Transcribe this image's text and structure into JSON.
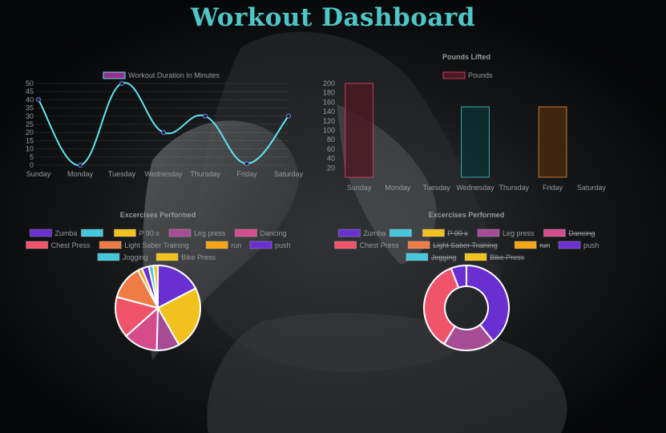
{
  "page": {
    "title": "Workout Dashboard"
  },
  "colors": {
    "title": "#4fc6c6",
    "line": "#5ee6ee",
    "text": "#9a9a9a"
  },
  "chart_data": [
    {
      "type": "line",
      "legend": [
        "Workout Duration In Minutes"
      ],
      "legend_color": "#9b2c8c",
      "categories": [
        "Sunday",
        "Monday",
        "Tuesday",
        "Wednesday",
        "Thursday",
        "Friday",
        "Saturday"
      ],
      "series": [
        {
          "name": "Workout Duration In Minutes",
          "values": [
            40,
            0,
            50,
            20,
            30,
            1,
            30
          ]
        }
      ],
      "yticks": [
        50,
        45,
        40,
        35,
        30,
        25,
        20,
        15,
        10,
        5,
        0
      ],
      "ylim": [
        0,
        50
      ]
    },
    {
      "type": "bar",
      "title": "Pounds Lifted",
      "legend": [
        "Pounds"
      ],
      "categories": [
        "Sunday",
        "Monday",
        "Tuesday",
        "Wednesday",
        "Thursday",
        "Friday",
        "Saturday"
      ],
      "series": [
        {
          "name": "Pounds",
          "values": [
            200,
            0,
            0,
            150,
            0,
            150,
            0
          ]
        }
      ],
      "bar_fills": [
        "#4a1822",
        "#000000",
        "#000000",
        "#0e3032",
        "#000000",
        "#4a2a10",
        "#000000"
      ],
      "bar_strokes": [
        "#c2405a",
        "#000000",
        "#000000",
        "#39a8a8",
        "#000000",
        "#c77a30",
        "#000000"
      ],
      "yticks": [
        200,
        180,
        160,
        140,
        120,
        100,
        80,
        60,
        40,
        20
      ],
      "ylim": [
        0,
        200
      ]
    },
    {
      "type": "pie",
      "title": "Excercises Performed",
      "legend": [
        "Zumba",
        "",
        "P 90 x",
        "Leg press",
        "Dancing",
        "Chest Press",
        "Light Saber Training",
        "run",
        "push",
        "Jogging",
        "Bike Press"
      ],
      "colors": [
        "#6a2fd0",
        "#45c7dc",
        "#f1c21d",
        "#a64c95",
        "#d54b8c",
        "#f0546a",
        "#ef7b45",
        "#f5a416",
        "#6a2fd0",
        "#45c7dc",
        "#f1c21d"
      ],
      "values": [
        20,
        0,
        28,
        10,
        15,
        18,
        15,
        2,
        3,
        2,
        2
      ]
    },
    {
      "type": "doughnut",
      "title": "Excercises Performed",
      "legend": [
        "Zumba",
        "",
        "P 90 x",
        "Leg press",
        "Dancing",
        "Chest Press",
        "Light Saber Training",
        "run",
        "push",
        "Jogging",
        "Bike Press"
      ],
      "hidden": [
        false,
        false,
        true,
        false,
        true,
        false,
        true,
        true,
        false,
        true,
        true
      ],
      "colors": [
        "#6a2fd0",
        "#45c7dc",
        "#f1c21d",
        "#a64c95",
        "#d54b8c",
        "#f0546a",
        "#ef7b45",
        "#f5a416",
        "#6a2fd0",
        "#45c7dc",
        "#f1c21d"
      ],
      "values": [
        20,
        0,
        28,
        10,
        15,
        18,
        15,
        2,
        3,
        2,
        2
      ]
    }
  ]
}
